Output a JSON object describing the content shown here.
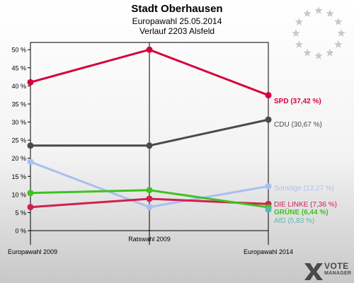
{
  "header": {
    "title": "Stadt Oberhausen",
    "subtitle": "Europawahl 25.05.2014",
    "subtitle2": "Verlauf 2203 Alsfeld"
  },
  "branding": {
    "line1": "VOTE",
    "line2": "MANAGER",
    "icon": "vote-manager-logo-icon",
    "eu_icon": "eu-stars-icon"
  },
  "chart_data": {
    "type": "line",
    "x": [
      "Europawahl 2009",
      "Ratswahl 2009",
      "Europawahl 2014"
    ],
    "ylim": [
      0,
      52
    ],
    "yticks": [
      "0 %",
      "5 %",
      "10 %",
      "15 %",
      "20 %",
      "25 %",
      "30 %",
      "35 %",
      "40 %",
      "45 %",
      "50 %"
    ],
    "grid": false,
    "series": [
      {
        "name": "SPD",
        "label": "SPD (37,42 %)",
        "color": "#d6003a",
        "bold": true,
        "values": [
          41.0,
          50.0,
          37.42
        ]
      },
      {
        "name": "CDU",
        "label": "CDU (30,67 %)",
        "color": "#4a4a4a",
        "bold": false,
        "values": [
          23.5,
          23.5,
          30.67
        ]
      },
      {
        "name": "Sonstige",
        "label": "Sonstige (12,27 %)",
        "color": "#a9bff2",
        "bold": false,
        "values": [
          19.0,
          6.5,
          12.27
        ]
      },
      {
        "name": "DIE LINKE",
        "label": "DIE LINKE (7,36 %)",
        "color": "#d0204f",
        "bold": false,
        "values": [
          6.5,
          8.8,
          7.36
        ]
      },
      {
        "name": "GRÜNE",
        "label": "GRÜNE (6,44 %)",
        "color": "#3fc21f",
        "bold": true,
        "values": [
          10.4,
          11.2,
          6.44
        ]
      },
      {
        "name": "AfD",
        "label": "AfD (5,83 %)",
        "color": "#5bb8ac",
        "bold": false,
        "values": [
          null,
          null,
          5.83
        ]
      }
    ]
  }
}
